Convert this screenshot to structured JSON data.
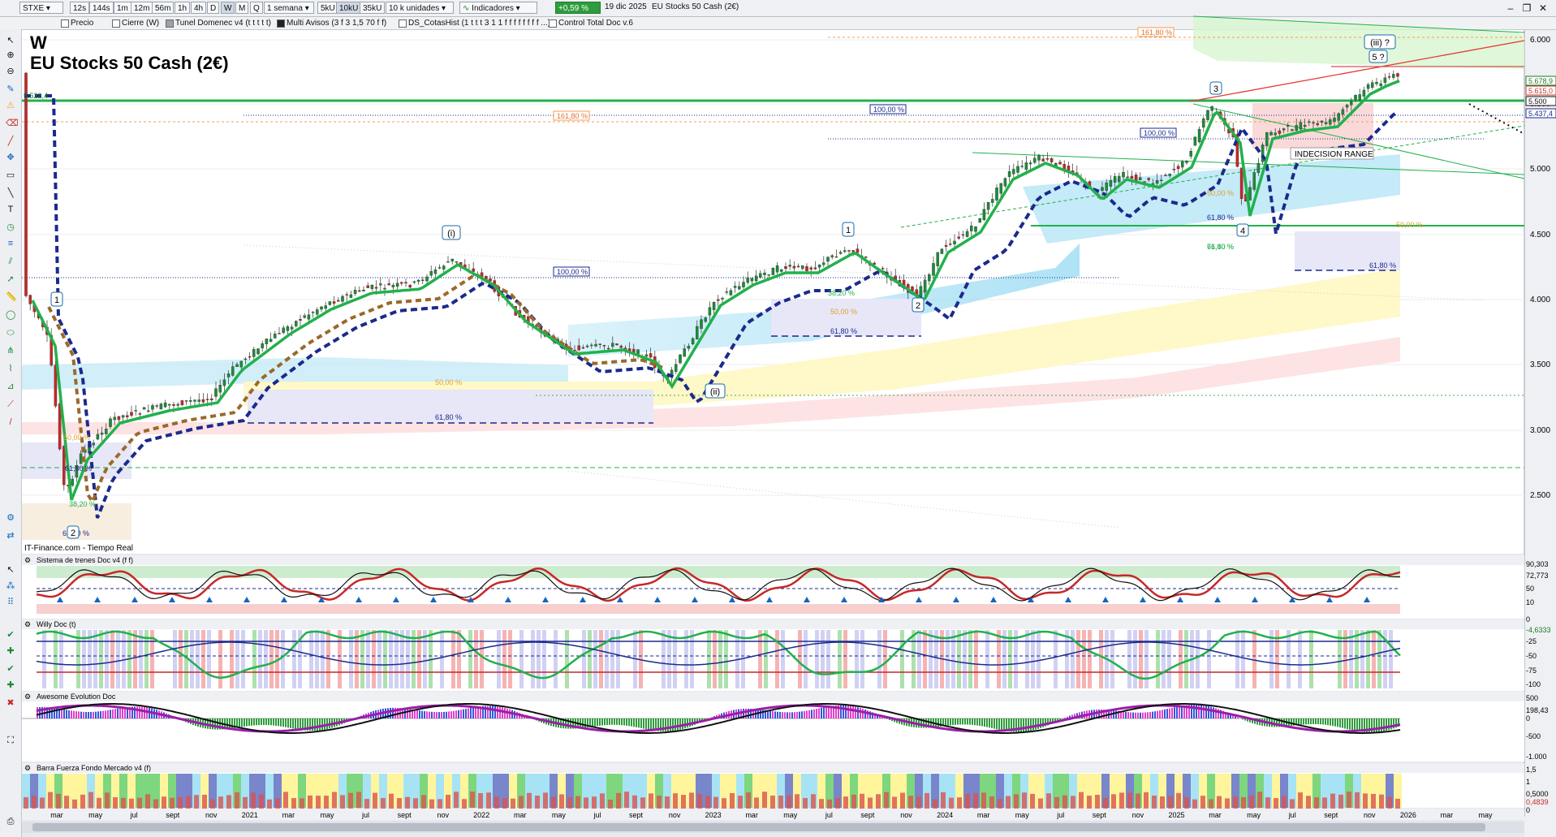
{
  "toolbar": {
    "symbol": "STXE",
    "timeframes": [
      "12s",
      "144s",
      "1m",
      "12m",
      "56m",
      "1h",
      "4h",
      "D",
      "W",
      "M",
      "Q"
    ],
    "timeframe_active": "W",
    "period": "1 semana",
    "units": [
      "5kU",
      "10kU",
      "35kU"
    ],
    "units_active": "10kU",
    "units_label": "10 k unidades",
    "indicators_label": "Indicadores",
    "change": "+0,59 %",
    "date": "19 dic 2025",
    "instrument": "EU Stocks 50 Cash (2€)"
  },
  "legend": [
    "Precio",
    "Cierre (W)",
    "Tunel Domenec v4 (t t t t t)",
    "Multi Avisos (3 f 3 1,5 70 f f)",
    "DS_CotasHist (1 t t t 3 1 1 f f f f f f f f ...)",
    "Control Total Doc v.6"
  ],
  "chart": {
    "period_letter": "W",
    "title": "EU Stocks 50 Cash (2€)",
    "source": "IT-Finance.com - Tiempo Real",
    "level_label": "5.522,4",
    "price_axis": [
      "6.000",
      "5.500",
      "5.000",
      "4.500",
      "4.000",
      "3.500",
      "3.000",
      "2.500"
    ],
    "price_tags": [
      {
        "text": "5.678,9",
        "color": "#1f7a1f"
      },
      {
        "text": "5.615,0",
        "color": "#c0392b"
      },
      {
        "text": "5.500",
        "color": "#111111"
      },
      {
        "text": "5.437,4",
        "color": "#1b2a8c"
      }
    ],
    "fib_labels": [
      "161,80 %",
      "161,80 %",
      "100,00 %",
      "100,00 %",
      "100,00 %",
      "61,80 %",
      "61,80 %",
      "50,00 %",
      "61,80 %",
      "38,20 %",
      "50,00 %",
      "61,80 %",
      "50,00 %",
      "61,80 %",
      "76,40 %",
      "50,00 %",
      "61,80 %",
      "50,00 %",
      "61,80 %",
      "38,20 %"
    ],
    "wave_labels": [
      "1",
      "(i)",
      "(ii)",
      "1",
      "2",
      "3",
      "4",
      "5 ?",
      "(iii) ?",
      "2"
    ],
    "range_label": "INDECISION RANGE",
    "time_axis": [
      "mar",
      "may",
      "jul",
      "sept",
      "nov",
      "2021",
      "mar",
      "may",
      "jul",
      "sept",
      "nov",
      "2022",
      "mar",
      "may",
      "jul",
      "sept",
      "nov",
      "2023",
      "mar",
      "may",
      "jul",
      "sept",
      "nov",
      "2024",
      "mar",
      "may",
      "jul",
      "sept",
      "nov",
      "2025",
      "mar",
      "may",
      "jul",
      "sept",
      "nov",
      "2026",
      "mar",
      "may"
    ]
  },
  "panels": {
    "trenes": {
      "title": "Sistema de trenes Doc v4 (f f)",
      "axis": [
        "90,303",
        "72,773",
        "50",
        "10"
      ]
    },
    "willy": {
      "title": "Willy Doc (t)",
      "axis": [
        "0",
        "-4,6333",
        "-25",
        "-50",
        "-75",
        "-100"
      ]
    },
    "awesome": {
      "title": "Awesome Evolution Doc",
      "axis": [
        "500",
        "198,43",
        "0",
        "-500",
        "-1.000"
      ]
    },
    "barra": {
      "title": "Barra Fuerza Fondo Mercado v4 (f)",
      "axis": [
        "1,5",
        "1",
        "0,5000",
        "0,4839",
        "0"
      ]
    }
  },
  "colors": {
    "up": "#1f8a3a",
    "down": "#c62828",
    "trend_fast": "#22b14c",
    "trend_slow": "#1b2a8c",
    "accent": "#f0a030"
  }
}
